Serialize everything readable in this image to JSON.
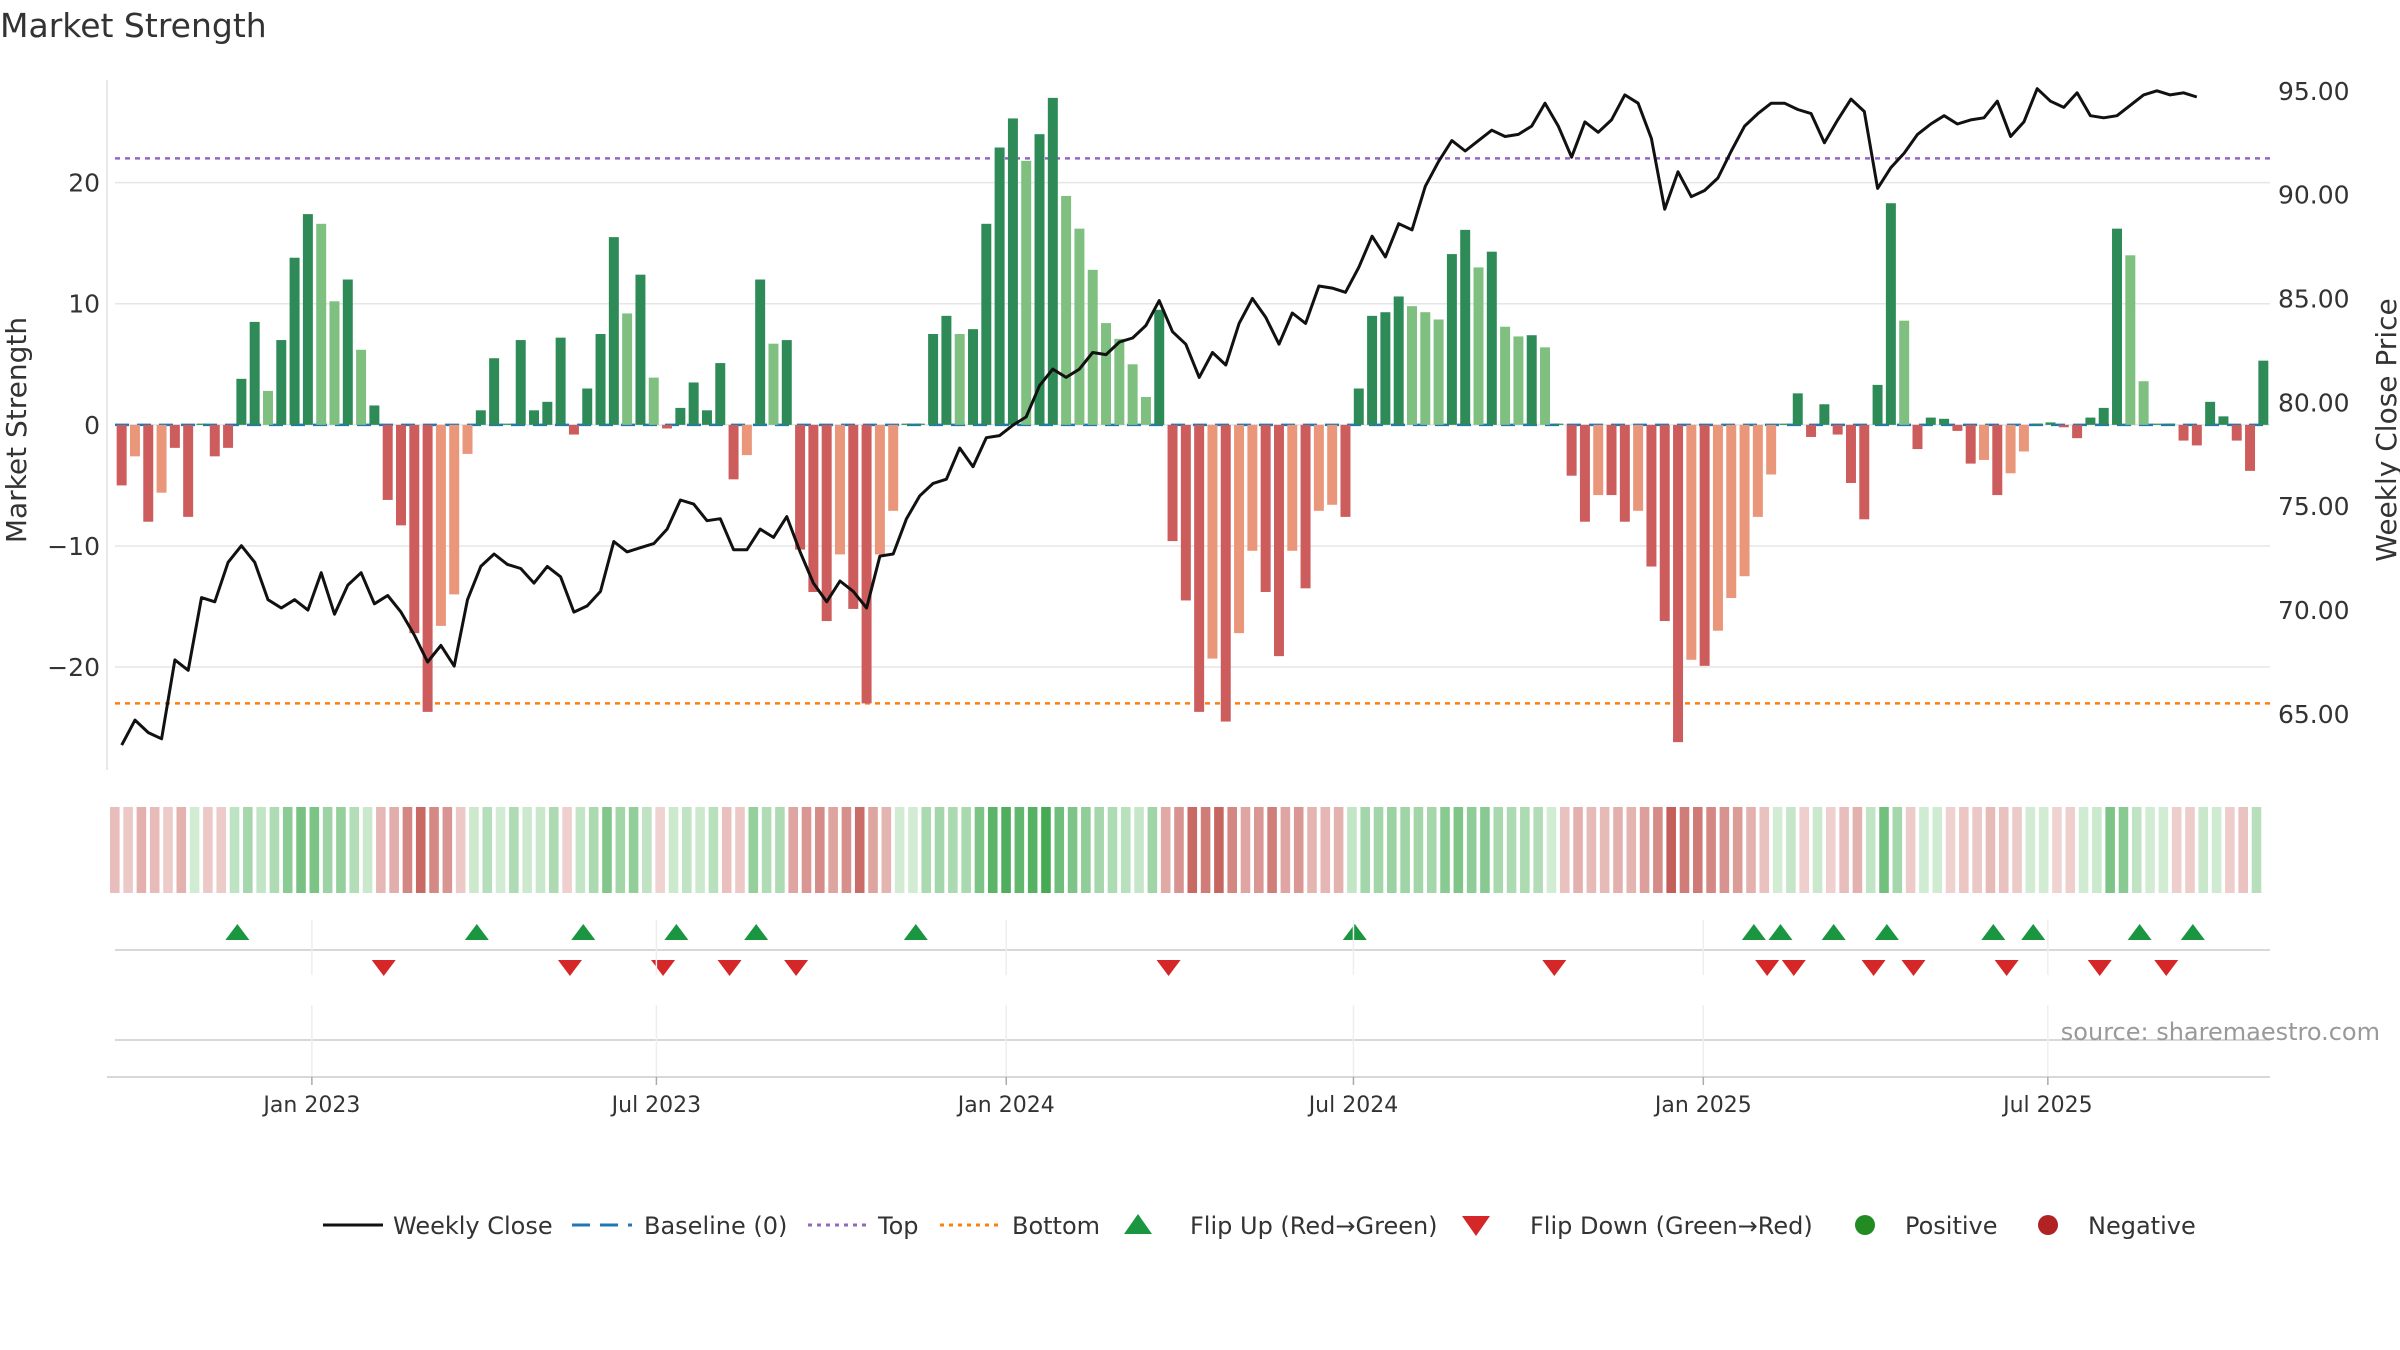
{
  "title": "Market Strength",
  "source": "source: sharemaestro.com",
  "colors": {
    "strong_green": "#2e8b57",
    "light_green": "#7fbf7f",
    "strong_red": "#cd5c5c",
    "light_red": "#e9967a",
    "line": "#111111",
    "baseline": "#1f77b4",
    "top": "#9467bd",
    "bottom": "#ff7f0e",
    "flip_up": "#1a9641",
    "flip_down": "#d62728",
    "positive": "#228b22",
    "negative": "#b22222",
    "grid": "#e6e6e6"
  },
  "chart_data": {
    "type": "bar",
    "ylabel_left": "Market Strength",
    "ylabel_right": "Weekly Close Price",
    "y_left_ticks": [
      20,
      10,
      0,
      -10,
      -20
    ],
    "y_left_tick_labels": [
      "20",
      "10",
      "0",
      "−10",
      "−20"
    ],
    "ylim_left": [
      -28.5,
      29.3
    ],
    "y_right_ticks": [
      95,
      90,
      85,
      80,
      75,
      70,
      65
    ],
    "y_right_tick_labels": [
      "95.00",
      "90.00",
      "85.00",
      "80.00",
      "75.00",
      "70.00",
      "65.00"
    ],
    "ylim_right": [
      62.3,
      96.0
    ],
    "top_threshold": 22,
    "bottom_threshold": -23,
    "x_tick_labels": [
      "Jan 2023",
      "Jul 2023",
      "Jan 2024",
      "Jul 2024",
      "Jan 2025",
      "Jul 2025"
    ],
    "x_tick_week_index": [
      14.8,
      40.7,
      67.0,
      93.1,
      119.4,
      145.3
    ],
    "strength": [
      -5,
      -2.6,
      -8,
      -5.6,
      -1.9,
      -7.6,
      0,
      -2.6,
      -1.9,
      3.8,
      8.5,
      2.8,
      7,
      13.8,
      17.4,
      16.6,
      10.2,
      12,
      6.2,
      1.6,
      -6.2,
      -8.3,
      -17.2,
      -23.7,
      -16.6,
      -14,
      -2.4,
      1.2,
      5.5,
      0,
      7,
      1.2,
      1.9,
      7.2,
      -0.8,
      3,
      7.5,
      15.5,
      9.2,
      12.4,
      3.9,
      -0.3,
      1.4,
      3.5,
      1.2,
      5.1,
      -4.5,
      -2.5,
      12,
      6.7,
      7,
      -10.3,
      -13.8,
      -16.2,
      -10.7,
      -15.2,
      -23,
      -10.7,
      -7.1,
      0,
      0,
      7.5,
      9,
      7.5,
      7.9,
      16.6,
      22.9,
      25.3,
      21.8,
      24,
      27,
      18.9,
      16.2,
      12.8,
      8.4,
      7.1,
      5,
      2.3,
      9.5,
      -9.6,
      -14.5,
      -23.7,
      -19.3,
      -24.5,
      -17.2,
      -10.4,
      -13.8,
      -19.1,
      -10.4,
      -13.5,
      -7.1,
      -6.6,
      -7.6,
      3,
      9,
      9.3,
      10.6,
      9.8,
      9.3,
      8.7,
      14.1,
      16.1,
      13,
      14.3,
      8.1,
      7.3,
      7.4,
      6.4,
      0,
      -4.2,
      -8,
      -5.8,
      -5.8,
      -8,
      -7.1,
      -11.7,
      -16.2,
      -26.2,
      -19.4,
      -19.9,
      -17,
      -14.3,
      -12.5,
      -7.6,
      -4.1,
      0,
      2.6,
      -1,
      1.7,
      -0.8,
      -4.8,
      -7.8,
      3.3,
      18.3,
      8.6,
      -2,
      0.6,
      0.5,
      -0.5,
      -3.2,
      -2.9,
      -5.8,
      -4,
      -2.2,
      0,
      0.2,
      -0.2,
      -1.1,
      0.6,
      1.4,
      16.2,
      14,
      3.6,
      0,
      0,
      -1.3,
      -1.7,
      1.9,
      0.7,
      -1.3,
      -3.8,
      5.3
    ],
    "weekly_close": [
      63.5,
      64.7,
      64.1,
      63.8,
      67.6,
      67.1,
      70.6,
      70.4,
      72.3,
      73.1,
      72.3,
      70.5,
      70.1,
      70.5,
      70,
      71.8,
      69.8,
      71.2,
      71.8,
      70.3,
      70.7,
      69.9,
      68.8,
      67.5,
      68.3,
      67.3,
      70.5,
      72.1,
      72.7,
      72.2,
      72,
      71.3,
      72.1,
      71.6,
      69.9,
      70.2,
      70.9,
      73.3,
      72.8,
      73,
      73.2,
      73.9,
      75.3,
      75.1,
      74.3,
      74.4,
      72.9,
      72.9,
      73.9,
      73.5,
      74.5,
      72.8,
      71.3,
      70.4,
      71.4,
      70.9,
      70.1,
      72.6,
      72.7,
      74.4,
      75.5,
      76.1,
      76.3,
      77.8,
      76.9,
      78.3,
      78.4,
      78.9,
      79.3,
      80.8,
      81.6,
      81.2,
      81.6,
      82.4,
      82.3,
      82.9,
      83.1,
      83.7,
      84.9,
      83.4,
      82.8,
      81.2,
      82.4,
      81.8,
      83.8,
      85,
      84.1,
      82.8,
      84.3,
      83.8,
      85.6,
      85.5,
      85.3,
      86.5,
      88,
      87,
      88.6,
      88.3,
      90.4,
      91.6,
      92.6,
      92.1,
      92.6,
      93.1,
      92.8,
      92.9,
      93.3,
      94.4,
      93.3,
      91.8,
      93.5,
      93,
      93.6,
      94.8,
      94.4,
      92.7,
      89.3,
      91.1,
      89.9,
      90.2,
      90.8,
      92.1,
      93.3,
      93.9,
      94.4,
      94.4,
      94.1,
      93.9,
      92.5,
      93.6,
      94.6,
      94,
      90.3,
      91.3,
      92,
      92.9,
      93.4,
      93.8,
      93.4,
      93.6,
      93.7,
      94.5,
      92.8,
      93.5,
      95.1,
      94.5,
      94.2,
      94.9,
      93.8,
      93.7,
      93.8,
      94.3,
      94.8,
      95,
      94.8,
      94.9,
      94.7
    ],
    "flip_up_weeks": [
      9.2,
      27.2,
      35.2,
      42.2,
      48.2,
      60.2,
      93.2,
      123.2,
      125.2,
      129.2,
      133.2,
      141.2,
      144.2,
      152.2,
      156.2
    ],
    "flip_down_weeks": [
      20.2,
      34.2,
      41.2,
      46.2,
      51.2,
      79.2,
      108.2,
      124.2,
      126.2,
      132.2,
      135.2,
      142.2,
      149.2,
      154.2
    ],
    "legend": [
      "Weekly Close",
      "Baseline (0)",
      "Top",
      "Bottom",
      "Flip Up (Red→Green)",
      "Flip Down (Green→Red)",
      "Positive",
      "Negative"
    ]
  }
}
